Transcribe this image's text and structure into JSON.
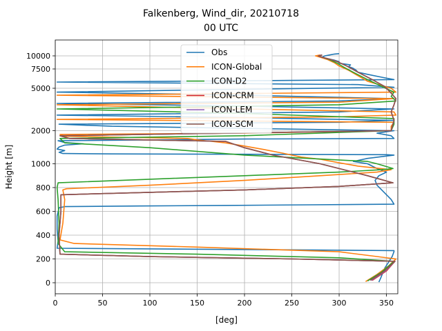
{
  "chart_data": {
    "type": "line",
    "title_line1": "Falkenberg, Wind_dir, 20210718",
    "title_line2": "00 UTC",
    "xlabel": "[deg]",
    "ylabel": "Height [m]",
    "xlim": [
      0,
      362
    ],
    "x_ticks": [
      0,
      50,
      100,
      150,
      200,
      250,
      300,
      350
    ],
    "y_ticks": [
      0,
      200,
      400,
      600,
      800,
      1000,
      2000,
      5000,
      7500,
      10000
    ],
    "y_tick_labels": [
      "0",
      "200",
      "400",
      "600",
      "800",
      "1000",
      "2000",
      "5000",
      "7500",
      "10000"
    ],
    "grid": true,
    "legend_position": "top-center",
    "series": [
      {
        "name": "Obs",
        "color": "#1f77b4",
        "points": [
          [
            342,
            5
          ],
          [
            344,
            40
          ],
          [
            348,
            120
          ],
          [
            356,
            220
          ],
          [
            358,
            262
          ],
          [
            358,
            270
          ],
          [
            2,
            290
          ],
          [
            3,
            350
          ],
          [
            2,
            450
          ],
          [
            2,
            560
          ],
          [
            4,
            630
          ],
          [
            10,
            640
          ],
          [
            90,
            645
          ],
          [
            180,
            650
          ],
          [
            270,
            655
          ],
          [
            358,
            660
          ],
          [
            355,
            700
          ],
          [
            350,
            740
          ],
          [
            345,
            780
          ],
          [
            340,
            820
          ],
          [
            338,
            860
          ],
          [
            342,
            900
          ],
          [
            350,
            930
          ],
          [
            340,
            960
          ],
          [
            330,
            1000
          ],
          [
            315,
            1050
          ],
          [
            330,
            1120
          ],
          [
            358,
            1200
          ],
          [
            350,
            1210
          ],
          [
            200,
            1220
          ],
          [
            60,
            1230
          ],
          [
            8,
            1240
          ],
          [
            4,
            1270
          ],
          [
            10,
            1320
          ],
          [
            2,
            1360
          ],
          [
            4,
            1420
          ],
          [
            10,
            1480
          ],
          [
            30,
            1520
          ],
          [
            10,
            1560
          ],
          [
            3,
            1620
          ],
          [
            200,
            1680
          ],
          [
            358,
            1700
          ],
          [
            355,
            1800
          ],
          [
            340,
            1900
          ],
          [
            358,
            2000
          ],
          [
            200,
            2100
          ],
          [
            60,
            2200
          ],
          [
            4,
            2300
          ],
          [
            300,
            2400
          ],
          [
            358,
            2500
          ],
          [
            200,
            2650
          ],
          [
            2,
            2800
          ],
          [
            300,
            3000
          ],
          [
            358,
            3200
          ],
          [
            200,
            3400
          ],
          [
            2,
            3600
          ],
          [
            300,
            3800
          ],
          [
            358,
            4000
          ],
          [
            200,
            4300
          ],
          [
            2,
            4600
          ],
          [
            200,
            4900
          ],
          [
            358,
            5100
          ],
          [
            320,
            5400
          ],
          [
            2,
            5700
          ],
          [
            250,
            5900
          ],
          [
            358,
            6000
          ],
          [
            345,
            6300
          ],
          [
            330,
            6700
          ],
          [
            320,
            7000
          ],
          [
            318,
            7300
          ],
          [
            315,
            7600
          ],
          [
            310,
            7900
          ],
          [
            312,
            8200
          ],
          [
            300,
            8500
          ],
          [
            300,
            8800
          ],
          [
            295,
            9100
          ],
          [
            288,
            9400
          ],
          [
            282,
            9700
          ],
          [
            285,
            10000
          ],
          [
            290,
            10200
          ],
          [
            295,
            10400
          ],
          [
            300,
            10500
          ]
        ]
      },
      {
        "name": "ICON-Global",
        "color": "#ff7f0e",
        "points": [
          [
            328,
            10
          ],
          [
            340,
            70
          ],
          [
            352,
            140
          ],
          [
            360,
            200
          ],
          [
            300,
            260
          ],
          [
            150,
            300
          ],
          [
            20,
            330
          ],
          [
            5,
            360
          ],
          [
            8,
            500
          ],
          [
            10,
            700
          ],
          [
            8,
            780
          ],
          [
            12,
            790
          ],
          [
            100,
            820
          ],
          [
            200,
            860
          ],
          [
            280,
            900
          ],
          [
            340,
            930
          ],
          [
            355,
            950
          ],
          [
            320,
            980
          ],
          [
            300,
            1020
          ],
          [
            280,
            1100
          ],
          [
            260,
            1150
          ],
          [
            240,
            1250
          ],
          [
            220,
            1350
          ],
          [
            200,
            1450
          ],
          [
            180,
            1550
          ],
          [
            165,
            1600
          ],
          [
            150,
            1650
          ],
          [
            140,
            1700
          ],
          [
            10,
            1780
          ],
          [
            5,
            1850
          ],
          [
            200,
            1900
          ],
          [
            355,
            2000
          ],
          [
            355,
            2200
          ],
          [
            358,
            2400
          ],
          [
            2,
            2550
          ],
          [
            300,
            2700
          ],
          [
            360,
            2800
          ],
          [
            358,
            3000
          ],
          [
            200,
            3200
          ],
          [
            2,
            3500
          ],
          [
            300,
            3700
          ],
          [
            358,
            4000
          ],
          [
            2,
            4300
          ],
          [
            360,
            4600
          ],
          [
            355,
            5000
          ],
          [
            330,
            5800
          ],
          [
            320,
            6500
          ],
          [
            310,
            7300
          ],
          [
            300,
            8000
          ],
          [
            295,
            8600
          ],
          [
            288,
            9200
          ],
          [
            280,
            9700
          ],
          [
            275,
            10000
          ],
          [
            280,
            10200
          ]
        ]
      },
      {
        "name": "ICON-D2",
        "color": "#2ca02c",
        "points": [
          [
            330,
            15
          ],
          [
            345,
            90
          ],
          [
            358,
            180
          ],
          [
            300,
            210
          ],
          [
            150,
            240
          ],
          [
            10,
            260
          ],
          [
            3,
            330
          ],
          [
            4,
            500
          ],
          [
            3,
            700
          ],
          [
            2,
            800
          ],
          [
            3,
            840
          ],
          [
            100,
            870
          ],
          [
            200,
            900
          ],
          [
            300,
            930
          ],
          [
            345,
            950
          ],
          [
            357,
            960
          ],
          [
            340,
            1000
          ],
          [
            330,
            1050
          ],
          [
            200,
            1200
          ],
          [
            100,
            1400
          ],
          [
            10,
            1550
          ],
          [
            5,
            1700
          ],
          [
            200,
            1800
          ],
          [
            355,
            2000
          ],
          [
            358,
            2300
          ],
          [
            358,
            2600
          ],
          [
            200,
            2900
          ],
          [
            2,
            3200
          ],
          [
            300,
            3500
          ],
          [
            360,
            3800
          ],
          [
            355,
            4200
          ],
          [
            358,
            4600
          ],
          [
            345,
            5200
          ],
          [
            330,
            6000
          ],
          [
            315,
            7000
          ],
          [
            305,
            7800
          ],
          [
            298,
            8500
          ],
          [
            290,
            9200
          ],
          [
            282,
            9700
          ],
          [
            278,
            10000
          ]
        ]
      },
      {
        "name": "ICON-CRM",
        "color": "#d62728",
        "points": [
          [
            335,
            20
          ],
          [
            350,
            100
          ],
          [
            359,
            180
          ],
          [
            250,
            200
          ],
          [
            100,
            220
          ],
          [
            5,
            240
          ],
          [
            4,
            400
          ],
          [
            6,
            600
          ],
          [
            6,
            740
          ],
          [
            100,
            760
          ],
          [
            200,
            780
          ],
          [
            300,
            810
          ],
          [
            357,
            840
          ],
          [
            330,
            900
          ],
          [
            280,
            1000
          ],
          [
            230,
            1200
          ],
          [
            200,
            1400
          ],
          [
            180,
            1600
          ],
          [
            15,
            1700
          ],
          [
            5,
            1800
          ],
          [
            355,
            2000
          ],
          [
            358,
            2500
          ],
          [
            355,
            3000
          ],
          [
            358,
            3500
          ],
          [
            360,
            4000
          ],
          [
            355,
            4500
          ],
          [
            348,
            5200
          ],
          [
            335,
            6000
          ],
          [
            320,
            7000
          ],
          [
            308,
            8000
          ],
          [
            298,
            8800
          ],
          [
            290,
            9300
          ],
          [
            282,
            9700
          ],
          [
            278,
            10000
          ],
          [
            282,
            10200
          ]
        ]
      },
      {
        "name": "ICON-LEM",
        "color": "#9467bd",
        "points": [
          [
            334,
            20
          ],
          [
            349,
            100
          ],
          [
            359,
            180
          ],
          [
            250,
            200
          ],
          [
            100,
            220
          ],
          [
            5,
            240
          ],
          [
            4,
            400
          ],
          [
            6,
            600
          ],
          [
            6,
            740
          ],
          [
            100,
            760
          ],
          [
            200,
            780
          ],
          [
            300,
            810
          ],
          [
            357,
            840
          ],
          [
            330,
            900
          ],
          [
            280,
            1000
          ],
          [
            230,
            1200
          ],
          [
            200,
            1400
          ],
          [
            180,
            1600
          ],
          [
            15,
            1700
          ],
          [
            5,
            1800
          ],
          [
            355,
            2000
          ],
          [
            358,
            2500
          ],
          [
            355,
            3000
          ],
          [
            358,
            3500
          ],
          [
            360,
            4000
          ],
          [
            355,
            4500
          ],
          [
            348,
            5200
          ],
          [
            335,
            6000
          ],
          [
            320,
            7000
          ],
          [
            308,
            8000
          ],
          [
            298,
            8800
          ],
          [
            290,
            9300
          ],
          [
            282,
            9700
          ],
          [
            278,
            10000
          ],
          [
            282,
            10200
          ]
        ]
      },
      {
        "name": "ICON-SCM",
        "color": "#8c564b",
        "points": [
          [
            333,
            20
          ],
          [
            348,
            100
          ],
          [
            359,
            180
          ],
          [
            250,
            200
          ],
          [
            100,
            220
          ],
          [
            5,
            240
          ],
          [
            4,
            400
          ],
          [
            6,
            600
          ],
          [
            6,
            740
          ],
          [
            100,
            760
          ],
          [
            200,
            780
          ],
          [
            300,
            810
          ],
          [
            357,
            840
          ],
          [
            330,
            900
          ],
          [
            280,
            1000
          ],
          [
            230,
            1200
          ],
          [
            200,
            1400
          ],
          [
            180,
            1600
          ],
          [
            15,
            1700
          ],
          [
            5,
            1800
          ],
          [
            355,
            2000
          ],
          [
            358,
            2500
          ],
          [
            355,
            3000
          ],
          [
            358,
            3500
          ],
          [
            360,
            4000
          ],
          [
            355,
            4500
          ],
          [
            348,
            5200
          ],
          [
            335,
            6000
          ],
          [
            320,
            7000
          ],
          [
            308,
            8000
          ],
          [
            298,
            8800
          ],
          [
            290,
            9300
          ],
          [
            282,
            9700
          ],
          [
            278,
            10000
          ],
          [
            282,
            10200
          ]
        ]
      }
    ]
  }
}
